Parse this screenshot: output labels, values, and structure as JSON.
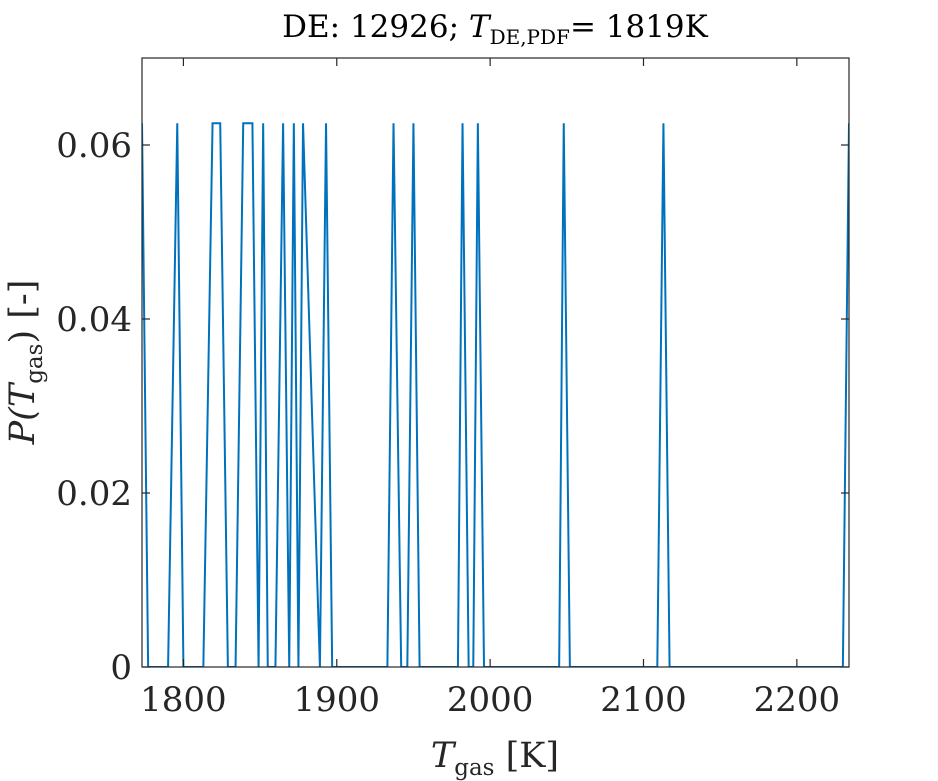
{
  "chart_data": {
    "type": "line",
    "title": {
      "prefix": "DE: 12926; ",
      "symbol": "T",
      "subscript": "DE,PDF",
      "suffix": "= 1819K"
    },
    "xlabel": {
      "symbol": "T",
      "subscript": "gas",
      "unit": " [K]"
    },
    "ylabel": {
      "prefix": "P(",
      "symbol": "T",
      "subscript": "gas",
      "suffix": ") [-]"
    },
    "xlim": [
      1773,
      2234
    ],
    "ylim": [
      0,
      0.07
    ],
    "xticks": [
      1800,
      1900,
      2000,
      2100,
      2200
    ],
    "yticks": [
      0,
      0.02,
      0.04,
      0.06
    ],
    "ytick_labels": [
      "0",
      "0.02",
      "0.04",
      "0.06"
    ],
    "grid": false,
    "series": [
      {
        "color": "#0072BD",
        "x": [
          1773,
          1777,
          1790,
          1796,
          1800,
          1813,
          1819,
          1824,
          1829,
          1834,
          1839,
          1845,
          1849,
          1852,
          1855,
          1860,
          1865,
          1869,
          1872,
          1875,
          1878,
          1889,
          1893,
          1897,
          1933,
          1937,
          1942,
          1946,
          1950,
          1954,
          1979,
          1982,
          1986,
          1989,
          1992,
          1996,
          2045,
          2048,
          2052,
          2109,
          2113,
          2117,
          2230,
          2234
        ],
        "y": [
          0.0625,
          0,
          0,
          0.0625,
          0,
          0,
          0.0625,
          0.0625,
          0,
          0,
          0.0625,
          0.0625,
          0,
          0.0625,
          0,
          0,
          0.0625,
          0,
          0.0625,
          0,
          0.0625,
          0,
          0.0625,
          0,
          0,
          0.0625,
          0,
          0,
          0.0625,
          0,
          0,
          0.0625,
          0,
          0,
          0.0625,
          0,
          0,
          0.0625,
          0,
          0,
          0.0625,
          0,
          0,
          0.0625
        ]
      }
    ]
  }
}
